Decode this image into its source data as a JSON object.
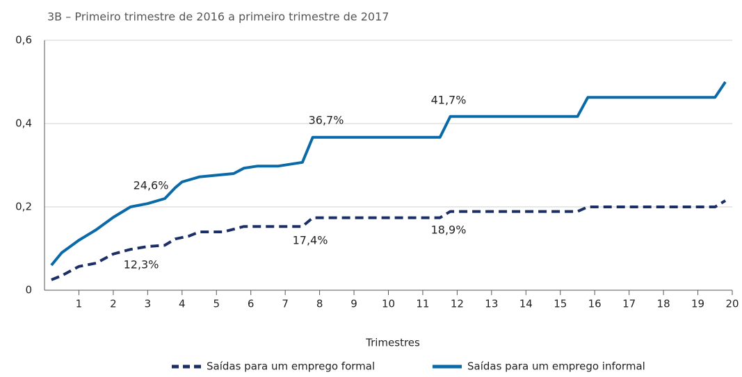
{
  "chart_data": {
    "type": "line",
    "title": "3B – Primeiro trimestre de 2016 a primeiro trimestre de 2017",
    "x_label": "Trimestres",
    "xlim": [
      0,
      20
    ],
    "xticks": [
      1,
      2,
      3,
      4,
      5,
      6,
      7,
      8,
      9,
      10,
      11,
      12,
      13,
      14,
      15,
      16,
      17,
      18,
      19,
      20
    ],
    "ylim": [
      0,
      0.6
    ],
    "yticks": [
      0,
      {
        "value": 0.2,
        "label": "0,2"
      },
      {
        "value": 0.4,
        "label": "0,4"
      },
      {
        "value": 0.6,
        "label": "0,6"
      }
    ],
    "grid": true,
    "legend": "bottom",
    "series": [
      {
        "name": "Saídas para um emprego formal",
        "color": "#1b2f66",
        "dashed": true,
        "x": [
          0.2,
          0.5,
          1,
          1.5,
          2,
          2.5,
          3,
          3.5,
          3.8,
          4.2,
          4.5,
          5.2,
          5.8,
          7.5,
          7.8,
          11.5,
          11.8,
          15.5,
          15.8,
          19.5,
          19.8
        ],
        "values": [
          0.025,
          0.035,
          0.057,
          0.065,
          0.087,
          0.098,
          0.105,
          0.108,
          0.123,
          0.13,
          0.14,
          0.14,
          0.153,
          0.153,
          0.174,
          0.174,
          0.189,
          0.189,
          0.2,
          0.2,
          0.215
        ]
      },
      {
        "name": "Saídas para um emprego informal",
        "color": "#0a6aa8",
        "dashed": false,
        "x": [
          0.2,
          0.5,
          1,
          1.5,
          2,
          2.5,
          3,
          3.5,
          3.8,
          4,
          4.5,
          5,
          5.5,
          5.8,
          6.2,
          6.8,
          7.5,
          7.8,
          11.5,
          11.8,
          15.5,
          15.8,
          19.5,
          19.8
        ],
        "values": [
          0.06,
          0.09,
          0.12,
          0.145,
          0.175,
          0.2,
          0.208,
          0.22,
          0.246,
          0.26,
          0.272,
          0.276,
          0.28,
          0.293,
          0.298,
          0.298,
          0.307,
          0.367,
          0.367,
          0.417,
          0.417,
          0.463,
          0.463,
          0.5
        ]
      }
    ],
    "annotations": [
      "24,6%",
      "12,3%",
      "36,7%",
      "17,4%",
      "41,7%",
      "18,9%"
    ]
  }
}
